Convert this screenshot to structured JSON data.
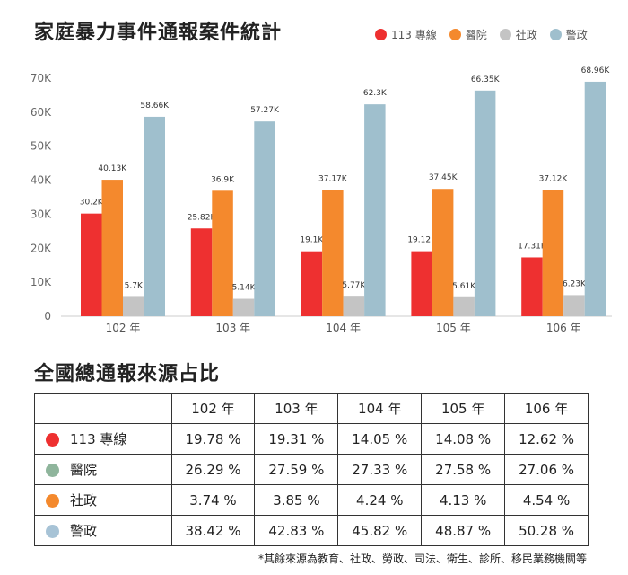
{
  "title": "家庭暴力事件通報案件統計",
  "legend": [
    {
      "label": "113 專線",
      "color": "#ee3030"
    },
    {
      "label": "醫院",
      "color": "#f4892d"
    },
    {
      "label": "社政",
      "color": "#c4c4c4"
    },
    {
      "label": "警政",
      "color": "#9fbfcd"
    }
  ],
  "chart_data": {
    "type": "bar",
    "categories": [
      "102 年",
      "103 年",
      "104 年",
      "105 年",
      "106 年"
    ],
    "series": [
      {
        "name": "113 專線",
        "color": "#ee3030",
        "values": [
          30200,
          25820,
          19100,
          19120,
          17310
        ],
        "labels": [
          "30.2K",
          "25.82K",
          "19.1K",
          "19.12K",
          "17.31K"
        ]
      },
      {
        "name": "醫院",
        "color": "#f4892d",
        "values": [
          40130,
          36900,
          37170,
          37450,
          37120
        ],
        "labels": [
          "40.13K",
          "36.9K",
          "37.17K",
          "37.45K",
          "37.12K"
        ]
      },
      {
        "name": "社政",
        "color": "#c4c4c4",
        "values": [
          5700,
          5140,
          5770,
          5610,
          6230
        ],
        "labels": [
          "5.7K",
          "5.14K",
          "5.77K",
          "5.61K",
          "6.23K"
        ]
      },
      {
        "name": "警政",
        "color": "#9fbfcd",
        "values": [
          58660,
          57270,
          62300,
          66350,
          68960
        ],
        "labels": [
          "58.66K",
          "57.27K",
          "62.3K",
          "66.35K",
          "68.96K"
        ]
      }
    ],
    "ylim": [
      0,
      70000
    ],
    "yticks": [
      0,
      10000,
      20000,
      30000,
      40000,
      50000,
      60000,
      70000
    ],
    "ytick_labels": [
      "0",
      "10K",
      "20K",
      "30K",
      "40K",
      "50K",
      "60K",
      "70K"
    ],
    "grid": false,
    "legend_position": "top-right"
  },
  "table": {
    "subtitle": "全國總通報來源占比",
    "headers": [
      "",
      "102 年",
      "103 年",
      "104 年",
      "105 年",
      "106 年"
    ],
    "rows": [
      {
        "source": "113 專線",
        "color": "#ee3030",
        "values": [
          "19.78 %",
          "19.31 %",
          "14.05 %",
          "14.08 %",
          "12.62 %"
        ]
      },
      {
        "source": "醫院",
        "color": "#8fb59c",
        "values": [
          "26.29 %",
          "27.59 %",
          "27.33 %",
          "27.58 %",
          "27.06 %"
        ]
      },
      {
        "source": "社政",
        "color": "#f4892d",
        "values": [
          "3.74 %",
          "3.85 %",
          "4.24 %",
          "4.13 %",
          "4.54 %"
        ]
      },
      {
        "source": "警政",
        "color": "#a7c3d6",
        "values": [
          "38.42 %",
          "42.83 %",
          "45.82 %",
          "48.87 %",
          "50.28 %"
        ]
      }
    ]
  },
  "footnote": "*其餘來源為教育、社政、勞政、司法、衛生、診所、移民業務機關等"
}
